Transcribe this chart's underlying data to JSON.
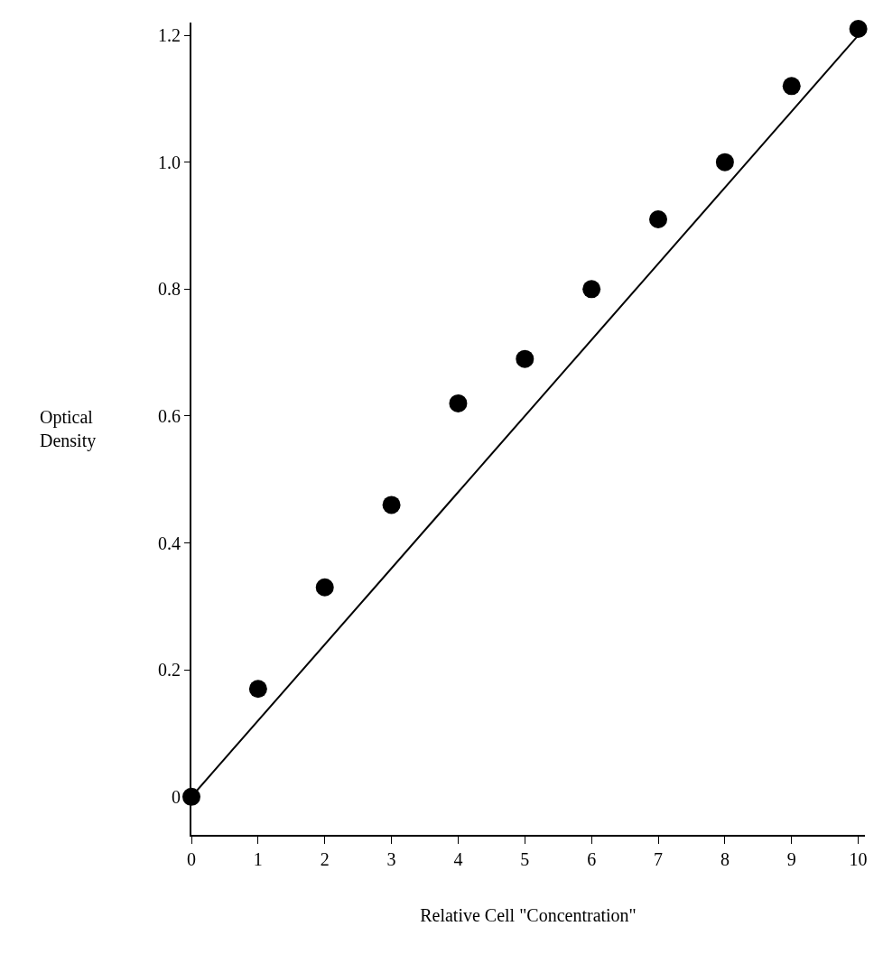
{
  "chart_data": {
    "type": "scatter",
    "xlabel": "Relative Cell \"Concentration\"",
    "ylabel": "Optical Density",
    "x": [
      0,
      1,
      2,
      3,
      4,
      5,
      6,
      7,
      8,
      9,
      10
    ],
    "series": [
      {
        "color": "#000000",
        "marker": "circle",
        "values": [
          0.0,
          0.17,
          0.33,
          0.46,
          0.62,
          0.69,
          0.8,
          0.91,
          1.0,
          1.12,
          1.21
        ]
      },
      {
        "type": "line",
        "color": "#000000",
        "line_style": "solid",
        "marker": "none",
        "x": [
          0,
          10
        ],
        "values": [
          0.0,
          1.2
        ]
      }
    ],
    "xlim": [
      0,
      10.1
    ],
    "ylim": [
      -0.06,
      1.22
    ],
    "xticks": [
      0,
      1,
      2,
      3,
      4,
      5,
      6,
      7,
      8,
      9,
      10
    ],
    "yticks": [
      0,
      {
        "value": 0.2,
        "label": "0.2"
      },
      {
        "value": 0.4,
        "label": "0.4"
      },
      {
        "value": 0.6,
        "label": "0.6"
      },
      {
        "value": 0.8,
        "label": "0.8"
      },
      {
        "value": 1.0,
        "label": "1.0"
      },
      {
        "value": 1.2,
        "label": "1.2"
      }
    ]
  }
}
